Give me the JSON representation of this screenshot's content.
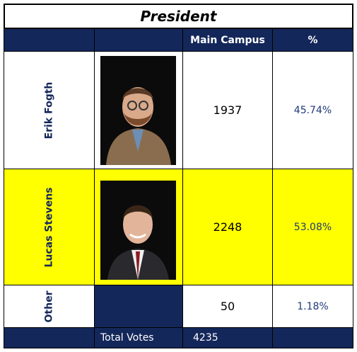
{
  "title": "President",
  "header": {
    "votes": "Main Campus",
    "percent": "%"
  },
  "rows": [
    {
      "name": "Erik Fogth",
      "votes": 1937,
      "percent": "45.74%"
    },
    {
      "name": "Lucas Stevens",
      "votes": 2248,
      "percent": "53.08%"
    },
    {
      "name": "Other",
      "votes": 50,
      "percent": "1.18%"
    }
  ],
  "total": {
    "label": "Total Votes",
    "votes": 4235
  }
}
